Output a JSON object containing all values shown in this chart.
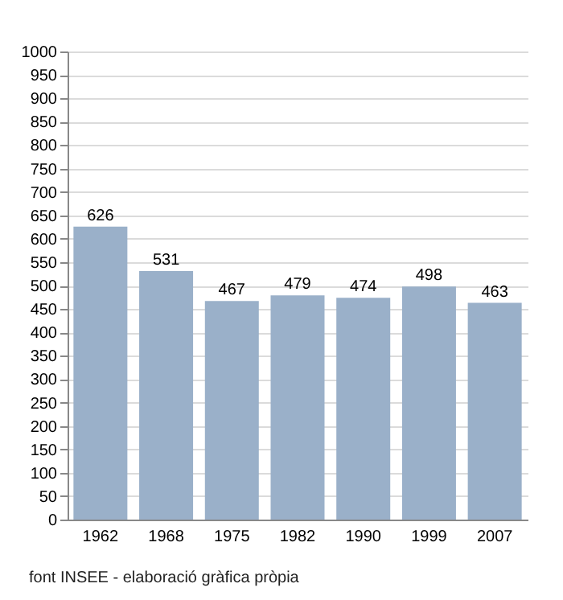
{
  "chart_data": {
    "type": "bar",
    "categories": [
      "1962",
      "1968",
      "1975",
      "1982",
      "1990",
      "1999",
      "2007"
    ],
    "values": [
      626,
      531,
      467,
      479,
      474,
      498,
      463
    ],
    "color": "#9ab0c9",
    "ylim": [
      0,
      1000
    ],
    "yticks": [
      0,
      50,
      100,
      150,
      200,
      250,
      300,
      350,
      400,
      450,
      500,
      550,
      600,
      650,
      700,
      750,
      800,
      850,
      900,
      950,
      1000
    ],
    "grid": true,
    "data_labels": true,
    "annotations": [
      "font INSEE - elaboració gràfica pròpia"
    ]
  }
}
